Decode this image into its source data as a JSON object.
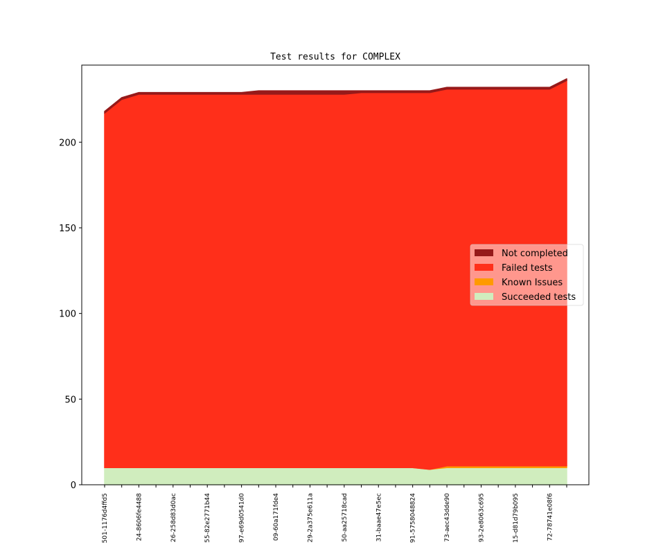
{
  "chart_data": {
    "type": "area",
    "stacked": true,
    "title": "Test results for COMPLEX",
    "xlabel": "",
    "ylabel": "",
    "ylim": [
      0,
      245
    ],
    "yticks": [
      0,
      50,
      100,
      150,
      200
    ],
    "grid": false,
    "legend_position": "center-right",
    "x_labels_shown": [
      "501-1176d4ffd5",
      "24-8606fe4488",
      "26-258d83d0ac",
      "55-82e2771b44",
      "97-e69d0541d0",
      "09-60a171fde4",
      "29-2a375e611a",
      "50-aa25718cad",
      "31-baae47e5ec",
      "91-5758048824",
      "73-aec43dde90",
      "93-2e8063c695",
      "15-d81d79b095",
      "72-78741e08f6"
    ],
    "x_points": 28,
    "series": [
      {
        "name": "Succeeded tests",
        "color": "#d0edbe",
        "values": [
          10,
          10,
          10,
          10,
          10,
          10,
          10,
          10,
          10,
          10,
          10,
          10,
          10,
          10,
          10,
          10,
          10,
          10,
          10,
          9,
          10,
          10,
          10,
          10,
          10,
          10,
          10,
          10
        ]
      },
      {
        "name": "Known Issues",
        "color": "#ff9a00",
        "values": [
          0,
          0,
          0,
          0,
          0,
          0,
          0,
          0,
          0,
          0,
          0,
          0,
          0,
          0,
          0,
          0,
          0,
          0,
          0,
          0,
          1,
          1,
          1,
          1,
          1,
          1,
          1,
          1
        ]
      },
      {
        "name": "Failed tests",
        "color": "#ff2f1a",
        "values": [
          207,
          215,
          218,
          218,
          218,
          218,
          218,
          218,
          218,
          218,
          218,
          218,
          218,
          218,
          218,
          219,
          219,
          219,
          219,
          220,
          220,
          220,
          220,
          220,
          220,
          220,
          220,
          225
        ]
      },
      {
        "name": "Not completed",
        "color": "#961a1a",
        "values": [
          1,
          1,
          1,
          1,
          1,
          1,
          1,
          1,
          1,
          2,
          2,
          2,
          2,
          2,
          2,
          1,
          1,
          1,
          1,
          1,
          1,
          1,
          1,
          1,
          1,
          1,
          1,
          1
        ]
      }
    ],
    "legend_order": [
      "Not completed",
      "Failed tests",
      "Known Issues",
      "Succeeded tests"
    ]
  }
}
